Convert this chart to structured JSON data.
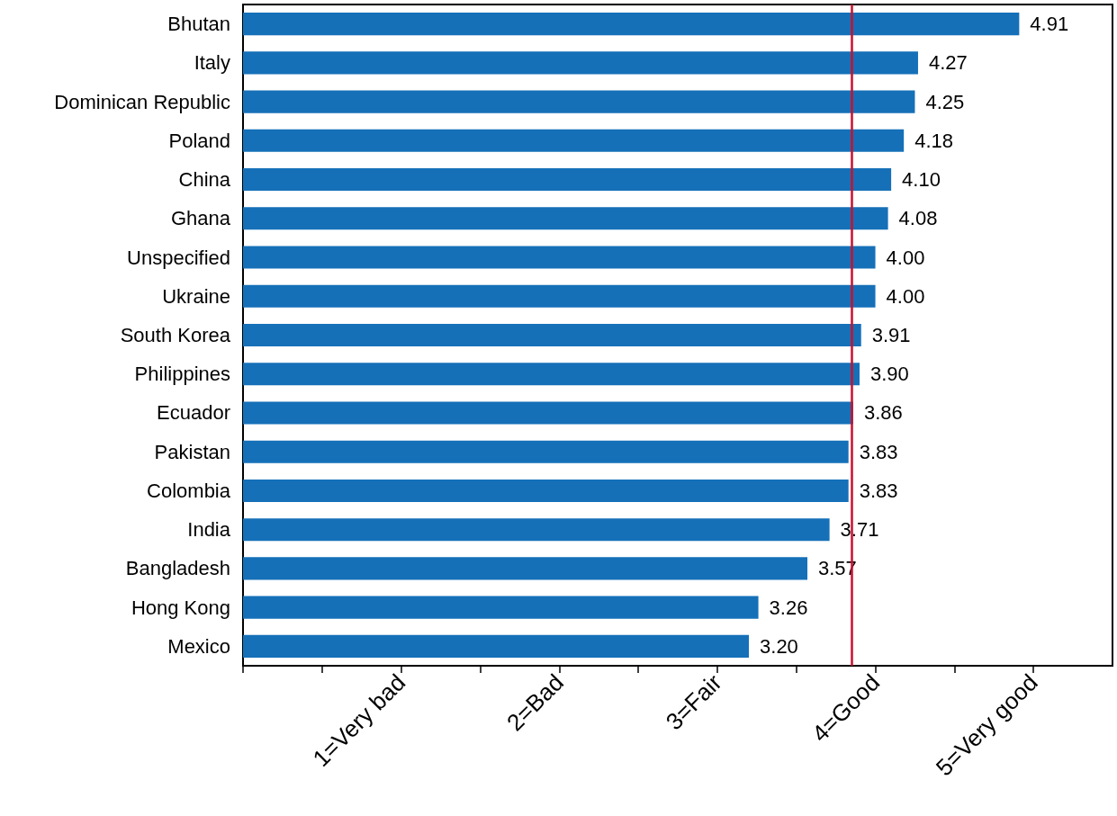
{
  "chart_data": {
    "type": "bar",
    "orientation": "horizontal",
    "categories": [
      "Bhutan",
      "Italy",
      "Dominican Republic",
      "Poland",
      "China",
      "Ghana",
      "Unspecified",
      "Ukraine",
      "South Korea",
      "Philippines",
      "Ecuador",
      "Pakistan",
      "Colombia",
      "India",
      "Bangladesh",
      "Hong Kong",
      "Mexico"
    ],
    "values": [
      4.91,
      4.27,
      4.25,
      4.18,
      4.1,
      4.08,
      4.0,
      4.0,
      3.91,
      3.9,
      3.86,
      3.83,
      3.83,
      3.71,
      3.57,
      3.26,
      3.2
    ],
    "value_labels": [
      "4.91",
      "4.27",
      "4.25",
      "4.18",
      "4.10",
      "4.08",
      "4.00",
      "4.00",
      "3.91",
      "3.90",
      "3.86",
      "3.83",
      "3.83",
      "3.71",
      "3.57",
      "3.26",
      "3.20"
    ],
    "color": "#1570b8",
    "xlim": [
      0,
      5.5
    ],
    "xticks": [
      {
        "value": 0,
        "label": null
      },
      {
        "value": 0.5,
        "label": null
      },
      {
        "value": 1,
        "label": "1=Very bad"
      },
      {
        "value": 1.5,
        "label": null
      },
      {
        "value": 2,
        "label": "2=Bad"
      },
      {
        "value": 2.5,
        "label": null
      },
      {
        "value": 3,
        "label": "3=Fair"
      },
      {
        "value": 3.5,
        "label": null
      },
      {
        "value": 4,
        "label": "4=Good"
      },
      {
        "value": 4.5,
        "label": null
      },
      {
        "value": 5,
        "label": "5=Very good"
      }
    ],
    "ref_lines": [
      {
        "axis": "x",
        "value": 3.85,
        "color": "#c8102e"
      }
    ],
    "grid": false
  }
}
